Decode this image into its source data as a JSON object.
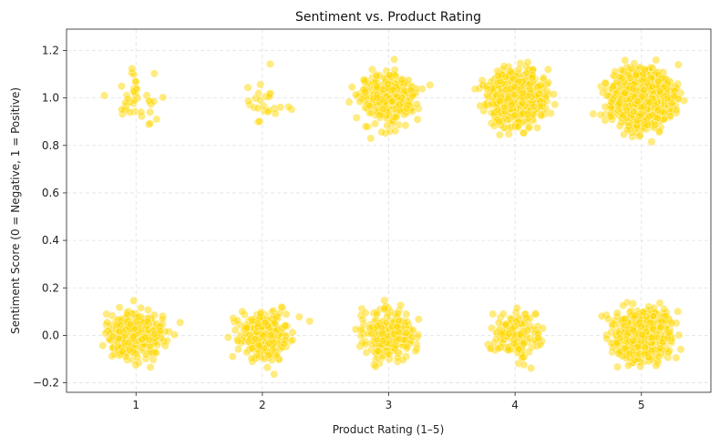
{
  "chart_data": {
    "type": "scatter",
    "title": "Sentiment vs. Product Rating",
    "xlabel": "Product Rating (1–5)",
    "ylabel": "Sentiment Score (0 = Negative, 1 = Positive)",
    "xlim": [
      0.45,
      5.55
    ],
    "ylim": [
      -0.24,
      1.29
    ],
    "xticks": [
      1,
      2,
      3,
      4,
      5
    ],
    "xtick_labels": [
      "1",
      "2",
      "3",
      "4",
      "5"
    ],
    "yticks": [
      -0.2,
      0.0,
      0.2,
      0.4,
      0.6,
      0.8,
      1.0,
      1.2
    ],
    "ytick_labels": [
      "−0.2",
      "0.0",
      "0.2",
      "0.4",
      "0.6",
      "0.8",
      "1.0",
      "1.2"
    ],
    "grid": true,
    "point_color": "#FFD700",
    "point_edge_color": "#ffffff",
    "point_opacity": 0.5,
    "jitter_x_sd": 0.1,
    "jitter_y_sd": 0.05,
    "groups": [
      {
        "rating": 1,
        "sentiment": 0,
        "count": 500
      },
      {
        "rating": 1,
        "sentiment": 1,
        "count": 40
      },
      {
        "rating": 2,
        "sentiment": 0,
        "count": 300
      },
      {
        "rating": 2,
        "sentiment": 1,
        "count": 25
      },
      {
        "rating": 3,
        "sentiment": 0,
        "count": 250
      },
      {
        "rating": 3,
        "sentiment": 1,
        "count": 400
      },
      {
        "rating": 4,
        "sentiment": 0,
        "count": 150
      },
      {
        "rating": 4,
        "sentiment": 1,
        "count": 1000
      },
      {
        "rating": 5,
        "sentiment": 0,
        "count": 800
      },
      {
        "rating": 5,
        "sentiment": 1,
        "count": 2500
      }
    ]
  }
}
